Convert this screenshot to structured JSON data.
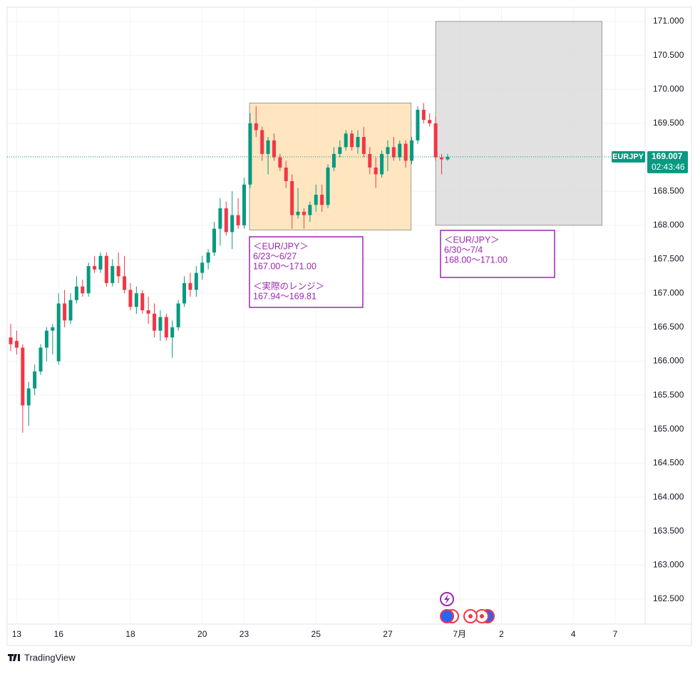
{
  "chart_data": {
    "type": "candlestick",
    "symbol": "EURJPY",
    "last_price": {
      "value": 169.007,
      "label": "169.007"
    },
    "countdown": "02:43:46",
    "up_color": "#089981",
    "down_color": "#f23645",
    "xlim": [
      -0.6,
      106
    ],
    "ylim": [
      162.133,
      171.21
    ],
    "xticks": [
      {
        "value": 1,
        "label": "13"
      },
      {
        "value": 8,
        "label": "16"
      },
      {
        "value": 20,
        "label": "18"
      },
      {
        "value": 32,
        "label": "20"
      },
      {
        "value": 39,
        "label": "23"
      },
      {
        "value": 51,
        "label": "25"
      },
      {
        "value": 63,
        "label": "27"
      },
      {
        "value": 75,
        "label": "7月"
      },
      {
        "value": 82,
        "label": "2"
      },
      {
        "value": 94,
        "label": "4"
      },
      {
        "value": 101,
        "label": "7"
      }
    ],
    "yticks": [
      {
        "value": 162.5,
        "label": "162.500"
      },
      {
        "value": 163,
        "label": "163.000"
      },
      {
        "value": 163.5,
        "label": "163.500"
      },
      {
        "value": 164,
        "label": "164.000"
      },
      {
        "value": 164.5,
        "label": "164.500"
      },
      {
        "value": 165,
        "label": "165.000"
      },
      {
        "value": 165.5,
        "label": "165.500"
      },
      {
        "value": 166,
        "label": "166.000"
      },
      {
        "value": 166.5,
        "label": "166.500"
      },
      {
        "value": 167,
        "label": "167.000"
      },
      {
        "value": 167.5,
        "label": "167.500"
      },
      {
        "value": 168,
        "label": "168.000"
      },
      {
        "value": 168.5,
        "label": "168.500"
      },
      {
        "value": 169,
        "label": "169.000"
      },
      {
        "value": 169.5,
        "label": "169.500"
      },
      {
        "value": 170,
        "label": "170.000"
      },
      {
        "value": 170.5,
        "label": "170.500"
      },
      {
        "value": 171,
        "label": "171.000"
      }
    ],
    "grid": true,
    "candles": [
      [
        166.35,
        166.55,
        166.15,
        166.25
      ],
      [
        166.3,
        166.45,
        166.1,
        166.2
      ],
      [
        166.2,
        166.25,
        164.95,
        165.35
      ],
      [
        165.35,
        165.7,
        165.05,
        165.6
      ],
      [
        165.6,
        165.95,
        165.5,
        165.85
      ],
      [
        165.85,
        166.25,
        165.8,
        166.2
      ],
      [
        166.2,
        166.5,
        166.0,
        166.45
      ],
      [
        166.45,
        166.55,
        166.1,
        166.5
      ],
      [
        166.0,
        167.0,
        165.95,
        166.85
      ],
      [
        166.85,
        167.05,
        166.5,
        166.6
      ],
      [
        166.6,
        167.0,
        166.55,
        166.9
      ],
      [
        166.9,
        167.25,
        166.85,
        167.1
      ],
      [
        167.1,
        167.2,
        166.95,
        167.0
      ],
      [
        167.0,
        167.45,
        166.95,
        167.4
      ],
      [
        167.4,
        167.55,
        167.3,
        167.35
      ],
      [
        167.35,
        167.6,
        167.3,
        167.55
      ],
      [
        167.55,
        167.6,
        167.1,
        167.15
      ],
      [
        167.15,
        167.5,
        167.1,
        167.4
      ],
      [
        167.4,
        167.6,
        167.15,
        167.25
      ],
      [
        167.25,
        167.55,
        167.0,
        167.05
      ],
      [
        167.05,
        167.15,
        166.75,
        166.8
      ],
      [
        166.8,
        167.1,
        166.7,
        167.0
      ],
      [
        167.0,
        167.05,
        166.7,
        166.75
      ],
      [
        166.75,
        166.95,
        166.55,
        166.7
      ],
      [
        166.7,
        166.85,
        166.35,
        166.45
      ],
      [
        166.45,
        166.75,
        166.3,
        166.65
      ],
      [
        166.65,
        166.7,
        166.3,
        166.35
      ],
      [
        166.35,
        166.6,
        166.05,
        166.5
      ],
      [
        166.5,
        166.9,
        166.45,
        166.85
      ],
      [
        166.85,
        167.25,
        166.8,
        167.15
      ],
      [
        167.15,
        167.3,
        166.95,
        167.05
      ],
      [
        167.05,
        167.4,
        166.95,
        167.3
      ],
      [
        167.3,
        167.55,
        167.2,
        167.45
      ],
      [
        167.45,
        167.65,
        167.35,
        167.6
      ],
      [
        167.6,
        168.05,
        167.55,
        167.95
      ],
      [
        167.95,
        168.4,
        167.7,
        168.25
      ],
      [
        168.25,
        168.35,
        167.85,
        167.9
      ],
      [
        167.9,
        168.5,
        167.65,
        168.15
      ],
      [
        168.15,
        168.4,
        167.95,
        168.0
      ],
      [
        168.0,
        168.7,
        167.95,
        168.6
      ],
      [
        168.6,
        169.65,
        168.55,
        169.5
      ],
      [
        169.5,
        169.75,
        169.3,
        169.4
      ],
      [
        169.4,
        169.45,
        168.95,
        169.05
      ],
      [
        169.05,
        169.3,
        168.75,
        169.25
      ],
      [
        169.25,
        169.35,
        168.95,
        169.0
      ],
      [
        169.0,
        169.05,
        168.8,
        168.85
      ],
      [
        168.85,
        168.95,
        168.55,
        168.65
      ],
      [
        168.65,
        168.75,
        167.95,
        168.15
      ],
      [
        168.15,
        168.55,
        168.1,
        168.2
      ],
      [
        168.2,
        168.25,
        167.95,
        168.15
      ],
      [
        168.15,
        168.35,
        168.05,
        168.3
      ],
      [
        168.3,
        168.6,
        168.2,
        168.45
      ],
      [
        168.45,
        168.6,
        168.2,
        168.3
      ],
      [
        168.3,
        168.9,
        168.25,
        168.85
      ],
      [
        168.85,
        169.15,
        168.8,
        169.05
      ],
      [
        169.05,
        169.25,
        169.0,
        169.15
      ],
      [
        169.15,
        169.4,
        169.1,
        169.35
      ],
      [
        169.35,
        169.4,
        169.1,
        169.15
      ],
      [
        169.15,
        169.4,
        169.05,
        169.3
      ],
      [
        169.3,
        169.45,
        169.0,
        169.05
      ],
      [
        169.05,
        169.15,
        168.75,
        168.85
      ],
      [
        168.85,
        169.0,
        168.55,
        168.75
      ],
      [
        168.75,
        169.1,
        168.7,
        169.05
      ],
      [
        169.05,
        169.25,
        168.8,
        169.15
      ],
      [
        169.15,
        169.3,
        168.95,
        169.0
      ],
      [
        169.0,
        169.25,
        168.95,
        169.2
      ],
      [
        169.2,
        169.25,
        168.85,
        168.95
      ],
      [
        168.95,
        169.3,
        168.9,
        169.25
      ],
      [
        169.25,
        169.75,
        169.2,
        169.7
      ],
      [
        169.7,
        169.8,
        169.5,
        169.55
      ],
      [
        169.55,
        169.65,
        169.45,
        169.5
      ],
      [
        169.5,
        169.6,
        168.95,
        169.0
      ],
      [
        169.0,
        169.05,
        168.75,
        168.97
      ],
      [
        168.97,
        169.05,
        168.95,
        169.007
      ]
    ],
    "zones": [
      {
        "x": [
          39.9,
          66.9
        ],
        "y": [
          167.93,
          169.8
        ],
        "color": "#ffe0b2"
      },
      {
        "x": [
          71,
          98.8
        ],
        "y": [
          168.0,
          171.0
        ],
        "color": "#d9d9d9"
      }
    ],
    "annotations": [
      {
        "color": "#9c27b0",
        "groups": [
          [
            "＜EUR/JPY＞",
            "6/23〜6/27",
            "167.00〜171.00"
          ],
          [
            "＜実際のレンジ＞",
            "167.94〜169.81"
          ]
        ]
      },
      {
        "color": "#9c27b0",
        "groups": [
          [
            "＜EUR/JPY＞",
            "6/30〜7/4",
            "168.00〜171.00"
          ]
        ]
      }
    ],
    "brand": "TradingView"
  }
}
